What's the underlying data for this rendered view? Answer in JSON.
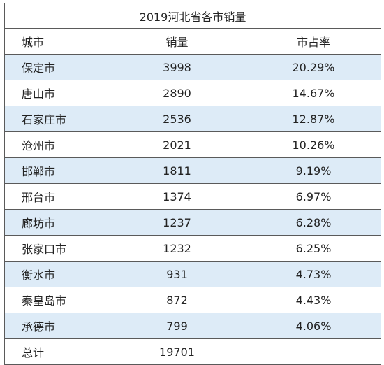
{
  "table": {
    "title": "2019河北省各市销量",
    "headers": {
      "city": "城市",
      "sales": "销量",
      "share": "市占率"
    },
    "rows": [
      {
        "city": "保定市",
        "sales": "3998",
        "share": "20.29%"
      },
      {
        "city": "唐山市",
        "sales": "2890",
        "share": "14.67%"
      },
      {
        "city": "石家庄市",
        "sales": "2536",
        "share": "12.87%"
      },
      {
        "city": "沧州市",
        "sales": "2021",
        "share": "10.26%"
      },
      {
        "city": "邯郸市",
        "sales": "1811",
        "share": "9.19%"
      },
      {
        "city": "邢台市",
        "sales": "1374",
        "share": "6.97%"
      },
      {
        "city": "廊坊市",
        "sales": "1237",
        "share": "6.28%"
      },
      {
        "city": "张家口市",
        "sales": "1232",
        "share": "6.25%"
      },
      {
        "city": "衡水市",
        "sales": "931",
        "share": "4.73%"
      },
      {
        "city": "秦皇岛市",
        "sales": "872",
        "share": "4.43%"
      },
      {
        "city": "承德市",
        "sales": "799",
        "share": "4.06%"
      }
    ],
    "total": {
      "label": "总计",
      "sales": "19701",
      "share": ""
    },
    "colors": {
      "row_shade": "#ddebf7",
      "border": "#5a5a5a"
    }
  }
}
